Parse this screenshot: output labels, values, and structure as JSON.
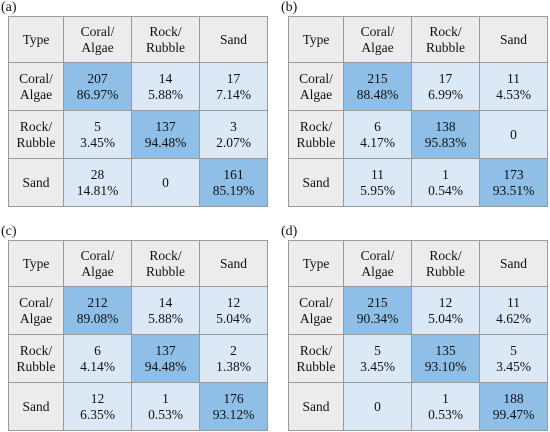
{
  "chart_data": [
    {
      "type": "table",
      "panel": "(a)",
      "columns": [
        "Type",
        "Coral/ Algae",
        "Rock/ Rubble",
        "Sand"
      ],
      "rows": [
        {
          "label": "Coral/ Algae",
          "cells": [
            {
              "count": "207",
              "pct": "86.97%"
            },
            {
              "count": "14",
              "pct": "5.88%"
            },
            {
              "count": "17",
              "pct": "7.14%"
            }
          ]
        },
        {
          "label": "Rock/ Rubble",
          "cells": [
            {
              "count": "5",
              "pct": "3.45%"
            },
            {
              "count": "137",
              "pct": "94.48%"
            },
            {
              "count": "3",
              "pct": "2.07%"
            }
          ]
        },
        {
          "label": "Sand",
          "cells": [
            {
              "count": "28",
              "pct": "14.81%"
            },
            {
              "count": "0",
              "pct": ""
            },
            {
              "count": "161",
              "pct": "85.19%"
            }
          ]
        }
      ]
    },
    {
      "type": "table",
      "panel": "(b)",
      "columns": [
        "Type",
        "Coral/ Algae",
        "Rock/ Rubble",
        "Sand"
      ],
      "rows": [
        {
          "label": "Coral/ Algae",
          "cells": [
            {
              "count": "215",
              "pct": "88.48%"
            },
            {
              "count": "17",
              "pct": "6.99%"
            },
            {
              "count": "11",
              "pct": "4.53%"
            }
          ]
        },
        {
          "label": "Rock/ Rubble",
          "cells": [
            {
              "count": "6",
              "pct": "4.17%"
            },
            {
              "count": "138",
              "pct": "95.83%"
            },
            {
              "count": "0",
              "pct": ""
            }
          ]
        },
        {
          "label": "Sand",
          "cells": [
            {
              "count": "11",
              "pct": "5.95%"
            },
            {
              "count": "1",
              "pct": "0.54%"
            },
            {
              "count": "173",
              "pct": "93.51%"
            }
          ]
        }
      ]
    },
    {
      "type": "table",
      "panel": "(c)",
      "columns": [
        "Type",
        "Coral/ Algae",
        "Rock/ Rubble",
        "Sand"
      ],
      "rows": [
        {
          "label": "Coral/ Algae",
          "cells": [
            {
              "count": "212",
              "pct": "89.08%"
            },
            {
              "count": "14",
              "pct": "5.88%"
            },
            {
              "count": "12",
              "pct": "5.04%"
            }
          ]
        },
        {
          "label": "Rock/ Rubble",
          "cells": [
            {
              "count": "6",
              "pct": "4.14%"
            },
            {
              "count": "137",
              "pct": "94.48%"
            },
            {
              "count": "2",
              "pct": "1.38%"
            }
          ]
        },
        {
          "label": "Sand",
          "cells": [
            {
              "count": "12",
              "pct": "6.35%"
            },
            {
              "count": "1",
              "pct": "0.53%"
            },
            {
              "count": "176",
              "pct": "93.12%"
            }
          ]
        }
      ]
    },
    {
      "type": "table",
      "panel": "(d)",
      "columns": [
        "Type",
        "Coral/ Algae",
        "Rock/ Rubble",
        "Sand"
      ],
      "rows": [
        {
          "label": "Coral/ Algae",
          "cells": [
            {
              "count": "215",
              "pct": "90.34%"
            },
            {
              "count": "12",
              "pct": "5.04%"
            },
            {
              "count": "11",
              "pct": "4.62%"
            }
          ]
        },
        {
          "label": "Rock/ Rubble",
          "cells": [
            {
              "count": "5",
              "pct": "3.45%"
            },
            {
              "count": "135",
              "pct": "93.10%"
            },
            {
              "count": "5",
              "pct": "3.45%"
            }
          ]
        },
        {
          "label": "Sand",
          "cells": [
            {
              "count": "0",
              "pct": ""
            },
            {
              "count": "1",
              "pct": "0.53%"
            },
            {
              "count": "188",
              "pct": "99.47%"
            }
          ]
        }
      ]
    }
  ],
  "colors": {
    "header_bg": "#ececec",
    "offdiag_bg": "#dbe9f7",
    "diag_bg": "#8fbfe6",
    "border": "#9a9a9a"
  }
}
